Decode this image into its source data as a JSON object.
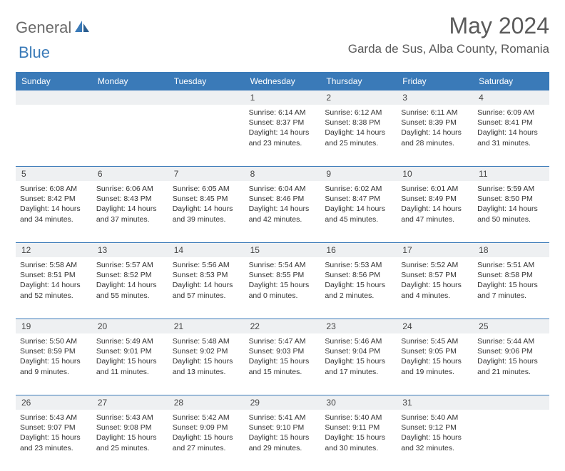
{
  "logo": {
    "text1": "General",
    "text2": "Blue"
  },
  "title": "May 2024",
  "location": "Garda de Sus, Alba County, Romania",
  "colors": {
    "header_bg": "#3a7ab8",
    "header_text": "#ffffff",
    "daynum_bg": "#eef0f2",
    "text": "#333333",
    "logo_gray": "#6a6a6a",
    "logo_blue": "#3a7ab8"
  },
  "day_labels": [
    "Sunday",
    "Monday",
    "Tuesday",
    "Wednesday",
    "Thursday",
    "Friday",
    "Saturday"
  ],
  "weeks": [
    [
      null,
      null,
      null,
      {
        "n": "1",
        "sr": "Sunrise: 6:14 AM",
        "ss": "Sunset: 8:37 PM",
        "d1": "Daylight: 14 hours",
        "d2": "and 23 minutes."
      },
      {
        "n": "2",
        "sr": "Sunrise: 6:12 AM",
        "ss": "Sunset: 8:38 PM",
        "d1": "Daylight: 14 hours",
        "d2": "and 25 minutes."
      },
      {
        "n": "3",
        "sr": "Sunrise: 6:11 AM",
        "ss": "Sunset: 8:39 PM",
        "d1": "Daylight: 14 hours",
        "d2": "and 28 minutes."
      },
      {
        "n": "4",
        "sr": "Sunrise: 6:09 AM",
        "ss": "Sunset: 8:41 PM",
        "d1": "Daylight: 14 hours",
        "d2": "and 31 minutes."
      }
    ],
    [
      {
        "n": "5",
        "sr": "Sunrise: 6:08 AM",
        "ss": "Sunset: 8:42 PM",
        "d1": "Daylight: 14 hours",
        "d2": "and 34 minutes."
      },
      {
        "n": "6",
        "sr": "Sunrise: 6:06 AM",
        "ss": "Sunset: 8:43 PM",
        "d1": "Daylight: 14 hours",
        "d2": "and 37 minutes."
      },
      {
        "n": "7",
        "sr": "Sunrise: 6:05 AM",
        "ss": "Sunset: 8:45 PM",
        "d1": "Daylight: 14 hours",
        "d2": "and 39 minutes."
      },
      {
        "n": "8",
        "sr": "Sunrise: 6:04 AM",
        "ss": "Sunset: 8:46 PM",
        "d1": "Daylight: 14 hours",
        "d2": "and 42 minutes."
      },
      {
        "n": "9",
        "sr": "Sunrise: 6:02 AM",
        "ss": "Sunset: 8:47 PM",
        "d1": "Daylight: 14 hours",
        "d2": "and 45 minutes."
      },
      {
        "n": "10",
        "sr": "Sunrise: 6:01 AM",
        "ss": "Sunset: 8:49 PM",
        "d1": "Daylight: 14 hours",
        "d2": "and 47 minutes."
      },
      {
        "n": "11",
        "sr": "Sunrise: 5:59 AM",
        "ss": "Sunset: 8:50 PM",
        "d1": "Daylight: 14 hours",
        "d2": "and 50 minutes."
      }
    ],
    [
      {
        "n": "12",
        "sr": "Sunrise: 5:58 AM",
        "ss": "Sunset: 8:51 PM",
        "d1": "Daylight: 14 hours",
        "d2": "and 52 minutes."
      },
      {
        "n": "13",
        "sr": "Sunrise: 5:57 AM",
        "ss": "Sunset: 8:52 PM",
        "d1": "Daylight: 14 hours",
        "d2": "and 55 minutes."
      },
      {
        "n": "14",
        "sr": "Sunrise: 5:56 AM",
        "ss": "Sunset: 8:53 PM",
        "d1": "Daylight: 14 hours",
        "d2": "and 57 minutes."
      },
      {
        "n": "15",
        "sr": "Sunrise: 5:54 AM",
        "ss": "Sunset: 8:55 PM",
        "d1": "Daylight: 15 hours",
        "d2": "and 0 minutes."
      },
      {
        "n": "16",
        "sr": "Sunrise: 5:53 AM",
        "ss": "Sunset: 8:56 PM",
        "d1": "Daylight: 15 hours",
        "d2": "and 2 minutes."
      },
      {
        "n": "17",
        "sr": "Sunrise: 5:52 AM",
        "ss": "Sunset: 8:57 PM",
        "d1": "Daylight: 15 hours",
        "d2": "and 4 minutes."
      },
      {
        "n": "18",
        "sr": "Sunrise: 5:51 AM",
        "ss": "Sunset: 8:58 PM",
        "d1": "Daylight: 15 hours",
        "d2": "and 7 minutes."
      }
    ],
    [
      {
        "n": "19",
        "sr": "Sunrise: 5:50 AM",
        "ss": "Sunset: 8:59 PM",
        "d1": "Daylight: 15 hours",
        "d2": "and 9 minutes."
      },
      {
        "n": "20",
        "sr": "Sunrise: 5:49 AM",
        "ss": "Sunset: 9:01 PM",
        "d1": "Daylight: 15 hours",
        "d2": "and 11 minutes."
      },
      {
        "n": "21",
        "sr": "Sunrise: 5:48 AM",
        "ss": "Sunset: 9:02 PM",
        "d1": "Daylight: 15 hours",
        "d2": "and 13 minutes."
      },
      {
        "n": "22",
        "sr": "Sunrise: 5:47 AM",
        "ss": "Sunset: 9:03 PM",
        "d1": "Daylight: 15 hours",
        "d2": "and 15 minutes."
      },
      {
        "n": "23",
        "sr": "Sunrise: 5:46 AM",
        "ss": "Sunset: 9:04 PM",
        "d1": "Daylight: 15 hours",
        "d2": "and 17 minutes."
      },
      {
        "n": "24",
        "sr": "Sunrise: 5:45 AM",
        "ss": "Sunset: 9:05 PM",
        "d1": "Daylight: 15 hours",
        "d2": "and 19 minutes."
      },
      {
        "n": "25",
        "sr": "Sunrise: 5:44 AM",
        "ss": "Sunset: 9:06 PM",
        "d1": "Daylight: 15 hours",
        "d2": "and 21 minutes."
      }
    ],
    [
      {
        "n": "26",
        "sr": "Sunrise: 5:43 AM",
        "ss": "Sunset: 9:07 PM",
        "d1": "Daylight: 15 hours",
        "d2": "and 23 minutes."
      },
      {
        "n": "27",
        "sr": "Sunrise: 5:43 AM",
        "ss": "Sunset: 9:08 PM",
        "d1": "Daylight: 15 hours",
        "d2": "and 25 minutes."
      },
      {
        "n": "28",
        "sr": "Sunrise: 5:42 AM",
        "ss": "Sunset: 9:09 PM",
        "d1": "Daylight: 15 hours",
        "d2": "and 27 minutes."
      },
      {
        "n": "29",
        "sr": "Sunrise: 5:41 AM",
        "ss": "Sunset: 9:10 PM",
        "d1": "Daylight: 15 hours",
        "d2": "and 29 minutes."
      },
      {
        "n": "30",
        "sr": "Sunrise: 5:40 AM",
        "ss": "Sunset: 9:11 PM",
        "d1": "Daylight: 15 hours",
        "d2": "and 30 minutes."
      },
      {
        "n": "31",
        "sr": "Sunrise: 5:40 AM",
        "ss": "Sunset: 9:12 PM",
        "d1": "Daylight: 15 hours",
        "d2": "and 32 minutes."
      },
      null
    ]
  ]
}
